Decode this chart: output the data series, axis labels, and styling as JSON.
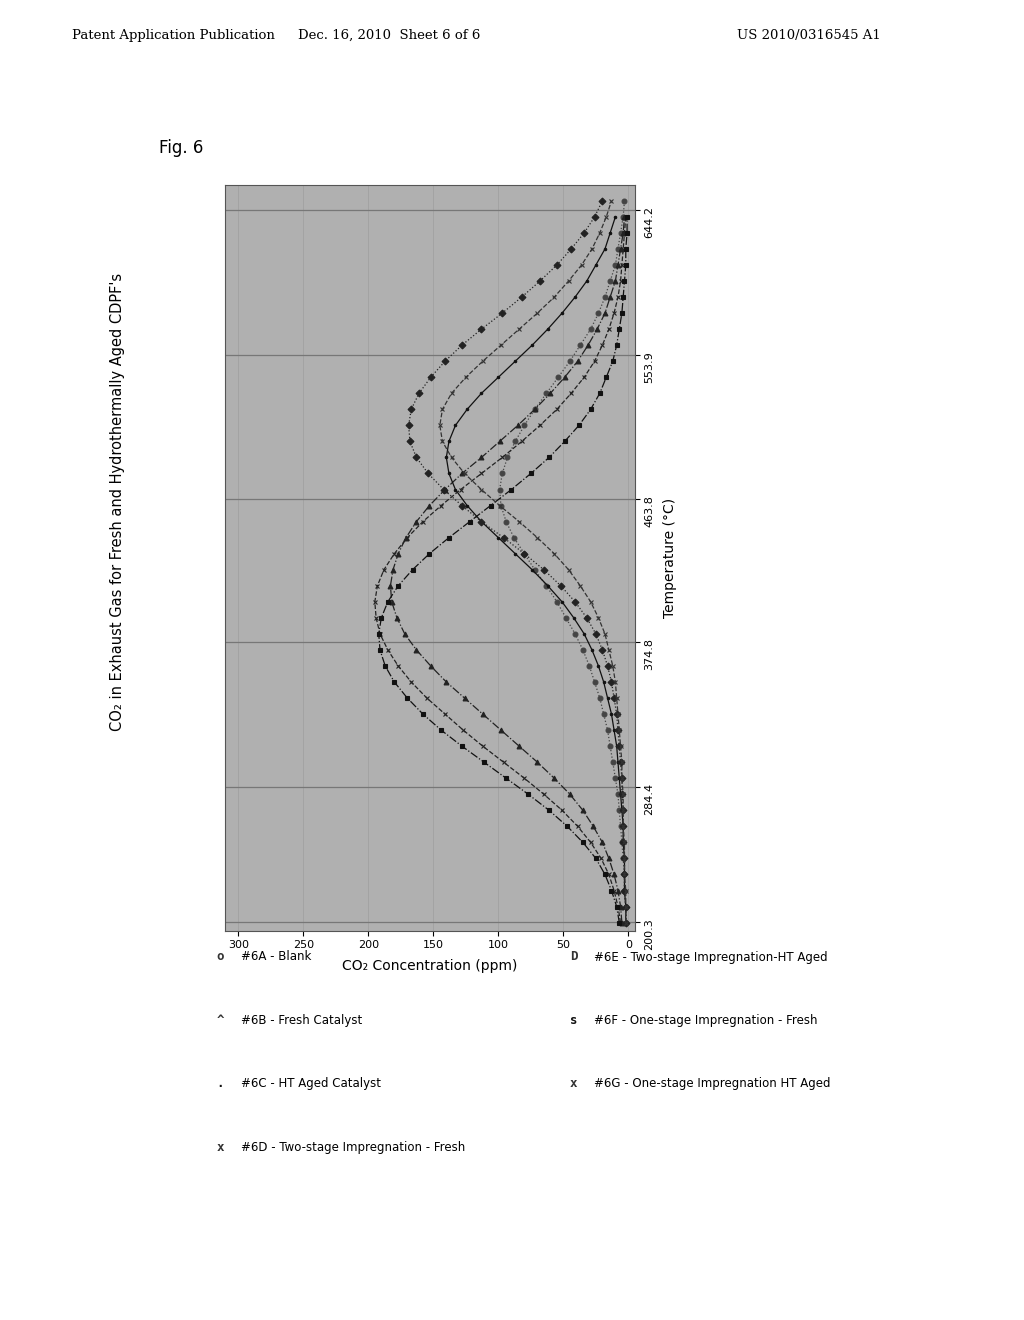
{
  "fig_label": "Fig. 6",
  "title": "CO₂ in Exhaust Gas for Fresh and Hydrothermally Aged CDPF's",
  "xlabel_rotated": "Temperature (°C)",
  "ylabel_rotated": "CO₂ Concentration (ppm)",
  "header_left": "Patent Application Publication",
  "header_center": "Dec. 16, 2010  Sheet 6 of 6",
  "header_right": "US 2010/0316545 A1",
  "temp_ticks": [
    200.3,
    284.4,
    374.8,
    463.8,
    553.9,
    644.2
  ],
  "conc_ticks": [
    0,
    50,
    100,
    150,
    200,
    250,
    300
  ],
  "temp_lim": [
    195,
    660
  ],
  "conc_lim": [
    -5,
    310
  ],
  "plot_bg_color": "#b0b0b0",
  "legend_entries_col1": [
    {
      "marker": "o",
      "label": "#6A - Blank",
      "color": "#333333"
    },
    {
      "marker": "^",
      "label": "#6B - Fresh Catalyst",
      "color": "#333333"
    },
    {
      "marker": ".",
      "label": "#6C - HT Aged Catalyst",
      "color": "#111111"
    },
    {
      "marker": "x",
      "label": "#6D - Two-stage Impregnation - Fresh",
      "color": "#333333"
    }
  ],
  "legend_entries_col2": [
    {
      "marker": "D",
      "label": "#6E - Two-stage Impregnation-HT Aged",
      "color": "#333333"
    },
    {
      "marker": "s",
      "label": "#6F - One-stage Impregnation - Fresh",
      "color": "#111111"
    },
    {
      "marker": "x",
      "label": "#6G - One-stage Impregnation HT Aged",
      "color": "#333333"
    }
  ],
  "series": {
    "6A_blank": {
      "temps": [
        200,
        210,
        220,
        230,
        240,
        250,
        260,
        270,
        280,
        290,
        300,
        310,
        320,
        330,
        340,
        350,
        360,
        370,
        380,
        390,
        400,
        410,
        420,
        430,
        440,
        450,
        460,
        470,
        480,
        490,
        500,
        510,
        520,
        530,
        540,
        550,
        560,
        570,
        580,
        590,
        600,
        610,
        620,
        630,
        640,
        650
      ],
      "conc": [
        2,
        2,
        3,
        3,
        4,
        5,
        6,
        7,
        8,
        10,
        12,
        14,
        16,
        19,
        22,
        26,
        30,
        35,
        41,
        48,
        55,
        63,
        72,
        80,
        88,
        94,
        98,
        99,
        97,
        93,
        87,
        80,
        72,
        63,
        54,
        45,
        37,
        29,
        23,
        18,
        14,
        10,
        8,
        6,
        4,
        3
      ],
      "marker": "o",
      "color": "#444444",
      "linestyle": ":"
    },
    "6B_fresh": {
      "temps": [
        200,
        210,
        220,
        230,
        240,
        250,
        260,
        270,
        280,
        290,
        300,
        310,
        320,
        330,
        340,
        350,
        360,
        370,
        380,
        390,
        400,
        410,
        420,
        430,
        440,
        450,
        460,
        470,
        480,
        490,
        500,
        510,
        520,
        530,
        540,
        550,
        560,
        570,
        580,
        590,
        600,
        610,
        620,
        630,
        640
      ],
      "conc": [
        5,
        6,
        8,
        11,
        15,
        20,
        27,
        35,
        45,
        57,
        70,
        84,
        98,
        112,
        126,
        140,
        152,
        163,
        172,
        178,
        182,
        183,
        181,
        177,
        171,
        163,
        153,
        141,
        128,
        113,
        99,
        85,
        72,
        60,
        49,
        39,
        31,
        24,
        18,
        14,
        10,
        8,
        6,
        4,
        3
      ],
      "marker": "^",
      "color": "#222222",
      "linestyle": "-."
    },
    "6C_ht_aged": {
      "temps": [
        200,
        210,
        220,
        230,
        240,
        250,
        260,
        270,
        280,
        290,
        300,
        310,
        320,
        330,
        340,
        350,
        360,
        370,
        380,
        390,
        400,
        410,
        420,
        430,
        440,
        450,
        460,
        470,
        480,
        490,
        500,
        510,
        520,
        530,
        540,
        550,
        560,
        570,
        580,
        590,
        600,
        610,
        620,
        630,
        640
      ],
      "conc": [
        2,
        2,
        3,
        3,
        3,
        4,
        4,
        5,
        6,
        7,
        8,
        9,
        11,
        13,
        16,
        19,
        23,
        28,
        34,
        42,
        51,
        62,
        74,
        87,
        100,
        113,
        124,
        133,
        138,
        140,
        138,
        133,
        124,
        113,
        100,
        87,
        74,
        62,
        51,
        41,
        32,
        25,
        18,
        14,
        10
      ],
      "marker": ".",
      "color": "#111111",
      "linestyle": "-"
    },
    "6D_twostage_fresh": {
      "temps": [
        200,
        210,
        220,
        230,
        240,
        250,
        260,
        270,
        280,
        290,
        300,
        310,
        320,
        330,
        340,
        350,
        360,
        370,
        380,
        390,
        400,
        410,
        420,
        430,
        440,
        450,
        460,
        470,
        480,
        490,
        500,
        510,
        520,
        530,
        540,
        550,
        560,
        570,
        580,
        590,
        600,
        610,
        620,
        630,
        640
      ],
      "conc": [
        6,
        8,
        11,
        15,
        21,
        29,
        39,
        51,
        65,
        80,
        96,
        112,
        127,
        141,
        155,
        167,
        177,
        185,
        191,
        194,
        195,
        193,
        188,
        180,
        170,
        158,
        144,
        129,
        113,
        97,
        82,
        68,
        55,
        44,
        34,
        26,
        20,
        15,
        11,
        8,
        6,
        5,
        4,
        3,
        2
      ],
      "marker": "x",
      "color": "#222222",
      "linestyle": "--"
    },
    "6E_twostage_ht": {
      "temps": [
        200,
        210,
        220,
        230,
        240,
        250,
        260,
        270,
        280,
        290,
        300,
        310,
        320,
        330,
        340,
        350,
        360,
        370,
        380,
        390,
        400,
        410,
        420,
        430,
        440,
        450,
        460,
        470,
        480,
        490,
        500,
        510,
        520,
        530,
        540,
        550,
        560,
        570,
        580,
        590,
        600,
        610,
        620,
        630,
        640,
        650
      ],
      "conc": [
        2,
        2,
        3,
        3,
        3,
        4,
        4,
        4,
        5,
        5,
        6,
        7,
        8,
        9,
        11,
        13,
        16,
        20,
        25,
        32,
        41,
        52,
        65,
        80,
        96,
        113,
        128,
        142,
        154,
        163,
        168,
        169,
        167,
        161,
        152,
        141,
        128,
        113,
        97,
        82,
        68,
        55,
        44,
        34,
        26,
        20
      ],
      "marker": "D",
      "color": "#222222",
      "linestyle": ":"
    },
    "6F_onestage_fresh": {
      "temps": [
        200,
        210,
        220,
        230,
        240,
        250,
        260,
        270,
        280,
        290,
        300,
        310,
        320,
        330,
        340,
        350,
        360,
        370,
        380,
        390,
        400,
        410,
        420,
        430,
        440,
        450,
        460,
        470,
        480,
        490,
        500,
        510,
        520,
        530,
        540,
        550,
        560,
        570,
        580,
        590,
        600,
        610,
        620,
        630,
        640
      ],
      "conc": [
        7,
        9,
        13,
        18,
        25,
        35,
        47,
        61,
        77,
        94,
        111,
        128,
        144,
        158,
        170,
        180,
        187,
        191,
        192,
        190,
        185,
        177,
        166,
        153,
        138,
        122,
        106,
        90,
        75,
        61,
        49,
        38,
        29,
        22,
        17,
        12,
        9,
        7,
        5,
        4,
        3,
        2,
        2,
        1,
        1
      ],
      "marker": "s",
      "color": "#111111",
      "linestyle": "-."
    },
    "6G_onestage_ht": {
      "temps": [
        200,
        210,
        220,
        230,
        240,
        250,
        260,
        270,
        280,
        290,
        300,
        310,
        320,
        330,
        340,
        350,
        360,
        370,
        380,
        390,
        400,
        410,
        420,
        430,
        440,
        450,
        460,
        470,
        480,
        490,
        500,
        510,
        520,
        530,
        540,
        550,
        560,
        570,
        580,
        590,
        600,
        610,
        620,
        630,
        640,
        650
      ],
      "conc": [
        2,
        2,
        2,
        3,
        3,
        3,
        4,
        4,
        4,
        5,
        5,
        6,
        7,
        8,
        9,
        10,
        12,
        15,
        18,
        23,
        29,
        37,
        46,
        57,
        70,
        84,
        99,
        113,
        126,
        136,
        143,
        145,
        143,
        136,
        125,
        112,
        98,
        84,
        70,
        57,
        46,
        36,
        28,
        22,
        17,
        13
      ],
      "marker": "x",
      "color": "#333333",
      "linestyle": "--"
    }
  }
}
